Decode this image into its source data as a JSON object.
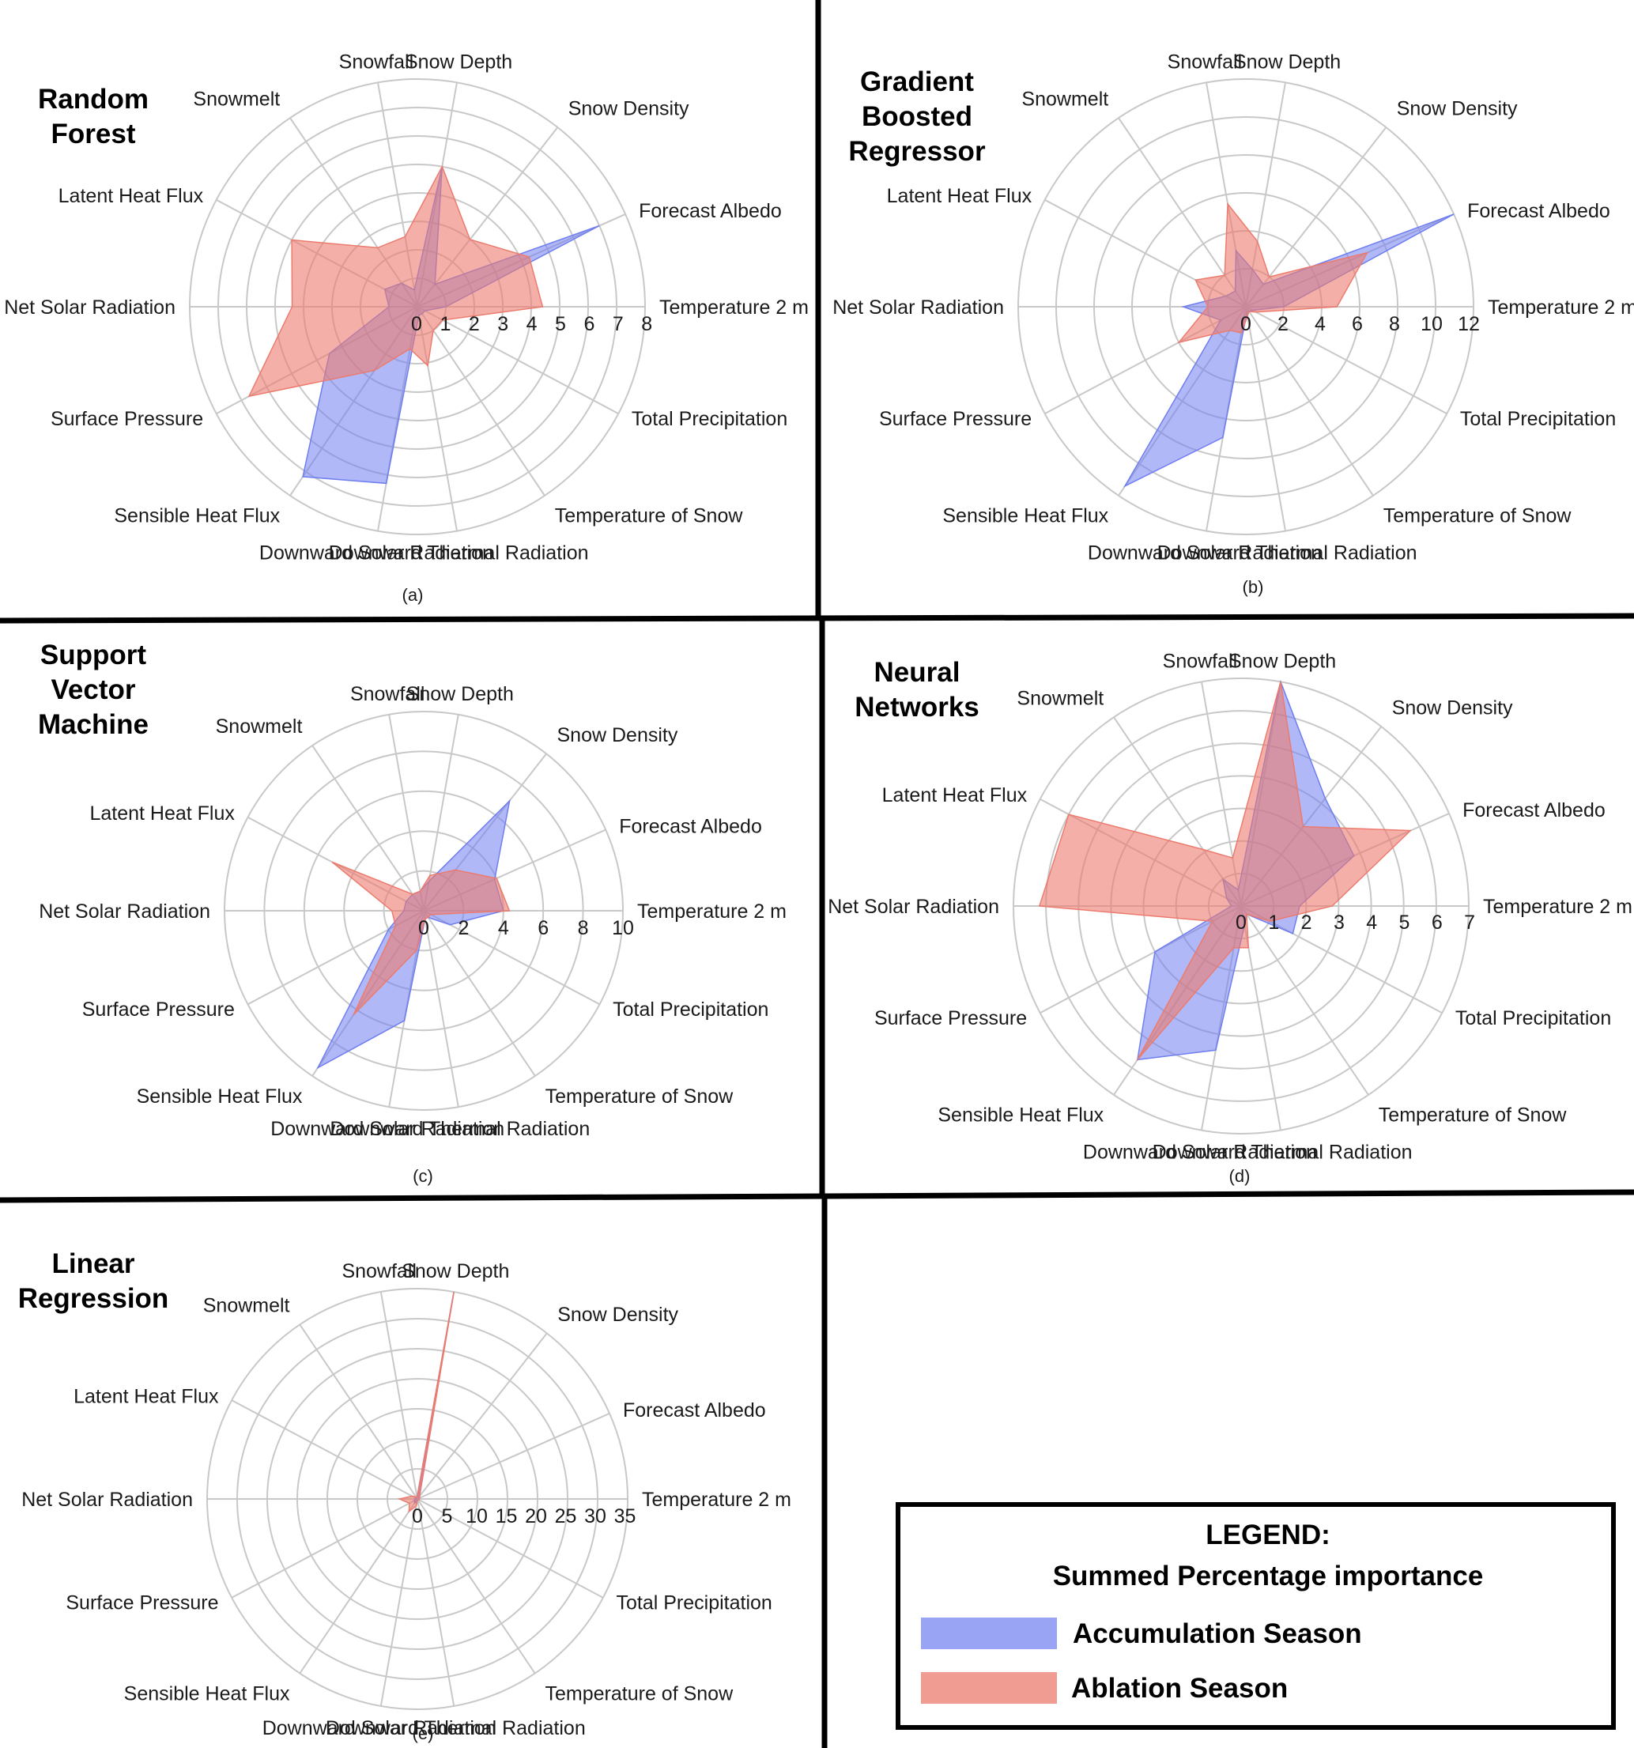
{
  "colors": {
    "accumulation": "#6f7ef0",
    "ablation": "#ec7b6e",
    "grid": "#c8c8c8",
    "divider": "#000000"
  },
  "legend": {
    "heading": "LEGEND:",
    "subheading": "Summed Percentage importance",
    "items": [
      "Accumulation Season",
      "Ablation Season"
    ]
  },
  "chart_data": [
    {
      "type": "radar",
      "title": "Random Forest",
      "title_lines": [
        "Random",
        "Forest"
      ],
      "sublabel": "(a)",
      "features": [
        "Snow Depth",
        "Snow Density",
        "Forecast Albedo",
        "Temperature 2 m",
        "Total Precipitation",
        "Temperature of Snow",
        "Downward Thermal Radiation",
        "Downward Solar Radiation",
        "Sensible Heat Flux",
        "Surface Pressure",
        "Net Solar Radiation",
        "Latent Heat Flux",
        "Snowmelt",
        "Snowfall"
      ],
      "ticks": [
        "0",
        "1",
        "2",
        "3",
        "4",
        "5",
        "6",
        "7",
        "8"
      ],
      "rmax": 8,
      "series": [
        {
          "name": "Accumulation Season",
          "values": [
            5.0,
            1.0,
            7.0,
            1.0,
            0.3,
            0.3,
            0.3,
            6.3,
            7.2,
            3.5,
            1.0,
            1.3,
            1.0,
            0.6
          ]
        },
        {
          "name": "Ablation Season",
          "values": [
            5.0,
            3.0,
            4.3,
            4.4,
            1.0,
            1.0,
            2.1,
            1.5,
            2.7,
            6.7,
            4.4,
            5.0,
            2.5,
            2.5
          ]
        }
      ]
    },
    {
      "type": "radar",
      "title": "Gradient Boosted Regressor",
      "title_lines": [
        "Gradient",
        "Boosted",
        "Regressor"
      ],
      "sublabel": "(b)",
      "features": [
        "Snow Depth",
        "Snow Density",
        "Forecast Albedo",
        "Temperature 2 m",
        "Total Precipitation",
        "Temperature of Snow",
        "Downward Thermal Radiation",
        "Downward Solar Radiation",
        "Sensible Heat Flux",
        "Surface Pressure",
        "Net Solar Radiation",
        "Latent Heat Flux",
        "Snowmelt",
        "Snowfall"
      ],
      "ticks": [
        "0",
        "2",
        "4",
        "6",
        "8",
        "10",
        "12"
      ],
      "rmax": 12,
      "series": [
        {
          "name": "Accumulation Season",
          "values": [
            2.0,
            1.5,
            12.0,
            2.0,
            0.4,
            0.3,
            0.3,
            7.0,
            11.4,
            1.5,
            3.3,
            1.2,
            1.0,
            3.0
          ]
        },
        {
          "name": "Ablation Season",
          "values": [
            3.5,
            2.0,
            7.0,
            4.8,
            0.6,
            0.3,
            0.5,
            1.4,
            1.5,
            4.0,
            2.0,
            3.0,
            2.0,
            5.5
          ]
        }
      ]
    },
    {
      "type": "radar",
      "title": "Support Vector Machine",
      "title_lines": [
        "Support",
        "Vector",
        "Machine"
      ],
      "sublabel": "(c)",
      "features": [
        "Snow Depth",
        "Snow Density",
        "Forecast Albedo",
        "Temperature 2 m",
        "Total Precipitation",
        "Temperature of Snow",
        "Downward Thermal Radiation",
        "Downward Solar Radiation",
        "Sensible Heat Flux",
        "Surface Pressure",
        "Net Solar Radiation",
        "Latent Heat Flux",
        "Snowmelt",
        "Snowfall"
      ],
      "ticks": [
        "0",
        "2",
        "4",
        "6",
        "8",
        "10"
      ],
      "rmax": 10,
      "series": [
        {
          "name": "Accumulation Season",
          "values": [
            1.5,
            7.0,
            3.9,
            4.0,
            1.5,
            0.4,
            0.4,
            5.6,
            9.5,
            2.0,
            1.0,
            1.0,
            1.0,
            1.0
          ]
        },
        {
          "name": "Ablation Season",
          "values": [
            1.8,
            2.6,
            4.0,
            4.3,
            0.4,
            0.4,
            0.4,
            2.0,
            6.3,
            1.6,
            1.6,
            5.2,
            1.0,
            1.0
          ]
        }
      ]
    },
    {
      "type": "radar",
      "title": "Neural Networks",
      "title_lines": [
        "Neural",
        "Networks"
      ],
      "sublabel": "(d)",
      "features": [
        "Snow Depth",
        "Snow Density",
        "Forecast Albedo",
        "Temperature 2 m",
        "Total Precipitation",
        "Temperature of Snow",
        "Downward Thermal Radiation",
        "Downward Solar Radiation",
        "Sensible Heat Flux",
        "Surface Pressure",
        "Net Solar Radiation",
        "Latent Heat Flux",
        "Snowmelt",
        "Snowfall"
      ],
      "ticks": [
        "0",
        "1",
        "2",
        "3",
        "4",
        "5",
        "6",
        "7"
      ],
      "rmax": 7,
      "series": [
        {
          "name": "Accumulation Season",
          "values": [
            7.0,
            4.2,
            3.8,
            1.8,
            1.8,
            0.3,
            0.6,
            4.5,
            5.7,
            3.0,
            0.3,
            0.5,
            1.0,
            0.5
          ]
        },
        {
          "name": "Ablation Season",
          "values": [
            7.0,
            3.1,
            5.7,
            2.8,
            1.0,
            0.3,
            1.3,
            1.3,
            5.7,
            1.0,
            6.2,
            6.0,
            2.1,
            1.5
          ]
        }
      ]
    },
    {
      "type": "radar",
      "title": "Linear Regression",
      "title_lines": [
        "Linear",
        "Regression"
      ],
      "sublabel": "(e)",
      "features": [
        "Snow Depth",
        "Snow Density",
        "Forecast Albedo",
        "Temperature 2 m",
        "Total Precipitation",
        "Temperature of Snow",
        "Downward Thermal Radiation",
        "Downward Solar Radiation",
        "Sensible Heat Flux",
        "Surface Pressure",
        "Net Solar Radiation",
        "Latent Heat Flux",
        "Snowmelt",
        "Snowfall"
      ],
      "ticks": [
        "0",
        "5",
        "10",
        "15",
        "20",
        "25",
        "30",
        "35"
      ],
      "rmax": 35,
      "series": [
        {
          "name": "Accumulation Season",
          "values": [
            34.0,
            0.5,
            0.4,
            0.3,
            0.3,
            0.2,
            0.2,
            0.3,
            0.8,
            0.6,
            0.4,
            0.3,
            0.3,
            0.3
          ]
        },
        {
          "name": "Ablation Season",
          "values": [
            36.5,
            0.6,
            0.4,
            0.3,
            0.3,
            0.2,
            0.2,
            1.2,
            2.5,
            1.5,
            3.0,
            1.0,
            0.4,
            0.3
          ]
        }
      ]
    }
  ]
}
